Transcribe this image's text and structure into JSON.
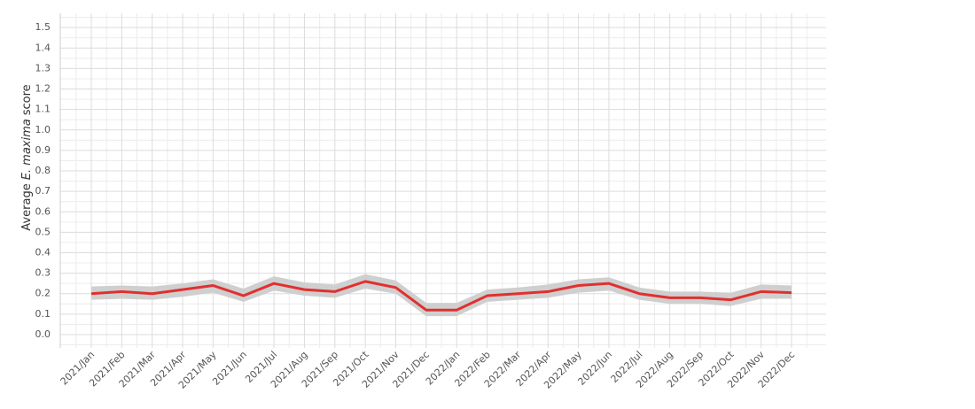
{
  "chart_data": {
    "type": "line",
    "y_label_parts": [
      "Average",
      "E. maxima",
      "score"
    ],
    "categories": [
      "2021/Jan",
      "2021/Feb",
      "2021/Mar",
      "2021/Apr",
      "2021/May",
      "2021/Jun",
      "2021/Jul",
      "2021/Aug",
      "2021/Sep",
      "2021/Oct",
      "2021/Nov",
      "2021/Dec",
      "2022/Jan",
      "2022/Feb",
      "2022/Mar",
      "2022/Apr",
      "2022/May",
      "2022/Jun",
      "2022/Jul",
      "2022/Aug",
      "2022/Sep",
      "2022/Oct",
      "2022/Nov",
      "2022/Dec"
    ],
    "values": [
      0.2,
      0.21,
      0.2,
      0.22,
      0.24,
      0.19,
      0.25,
      0.22,
      0.21,
      0.26,
      0.23,
      0.12,
      0.12,
      0.19,
      0.2,
      0.21,
      0.24,
      0.25,
      0.2,
      0.18,
      0.18,
      0.17,
      0.21,
      0.205
    ],
    "color": "#e03030",
    "band": {
      "color": "#cfcfcf",
      "lower": [
        0.17,
        0.175,
        0.17,
        0.185,
        0.205,
        0.16,
        0.215,
        0.19,
        0.18,
        0.225,
        0.2,
        0.09,
        0.09,
        0.16,
        0.17,
        0.18,
        0.205,
        0.215,
        0.17,
        0.15,
        0.15,
        0.14,
        0.175,
        0.175
      ],
      "upper": [
        0.235,
        0.24,
        0.235,
        0.25,
        0.27,
        0.225,
        0.285,
        0.255,
        0.245,
        0.295,
        0.265,
        0.155,
        0.155,
        0.22,
        0.23,
        0.245,
        0.27,
        0.28,
        0.23,
        0.21,
        0.21,
        0.205,
        0.245,
        0.24
      ]
    },
    "ylim": [
      -0.065,
      1.57
    ],
    "yticks": [
      {
        "value": 0,
        "label": "0.0"
      },
      0.1,
      0.2,
      0.3,
      0.4,
      0.5,
      0.6,
      0.7,
      0.8,
      0.9,
      {
        "value": 1,
        "label": "1.0"
      },
      1.1,
      1.2,
      1.3,
      1.4,
      1.5
    ],
    "grid": true
  }
}
